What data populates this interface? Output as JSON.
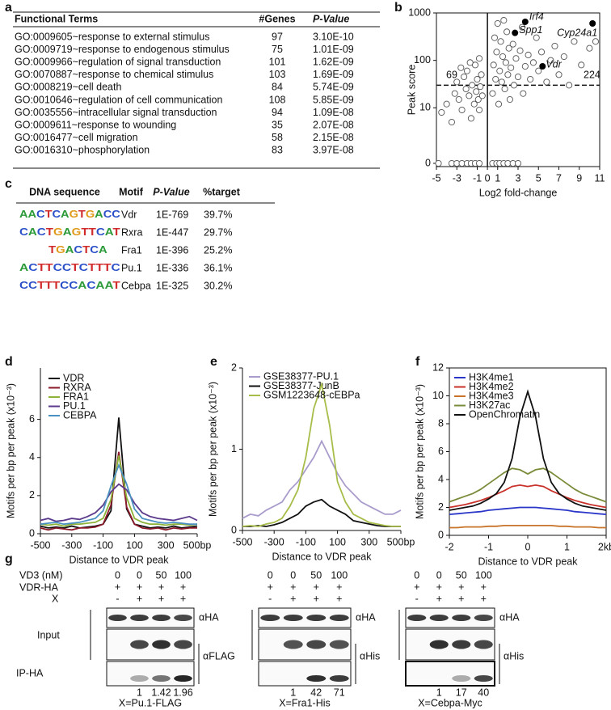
{
  "table_a": {
    "panel": "a",
    "headers": [
      "Functional Terms",
      "#Genes",
      "P-Value"
    ],
    "rows": [
      [
        "GO:0009605~response to external stimulus",
        "97",
        "3.10E-10"
      ],
      [
        "GO:0009719~response to endogenous stimulus",
        "75",
        "1.01E-09"
      ],
      [
        "GO:0009966~regulation of signal transduction",
        "101",
        "1.62E-09"
      ],
      [
        "GO:0070887~response to chemical stimulus",
        "103",
        "1.69E-09"
      ],
      [
        "GO:0008219~cell death",
        "84",
        "5.74E-09"
      ],
      [
        "GO:0010646~regulation of cell communication",
        "108",
        "5.85E-09"
      ],
      [
        "GO:0035556~intracellular signal transduction",
        "94",
        "1.09E-08"
      ],
      [
        "GO:0009611~response to wounding",
        "35",
        "2.07E-08"
      ],
      [
        "GO:0016477~cell migration",
        "58",
        "2.15E-08"
      ],
      [
        "GO:0016310~phosphorylation",
        "83",
        "3.97E-08"
      ]
    ]
  },
  "table_c": {
    "panel": "c",
    "headers": [
      "DNA sequence",
      "Motif",
      "P-Value",
      "%target"
    ],
    "rows": [
      [
        "AACTCAGTGACC",
        "Vdr",
        "1E-769",
        "39.7%"
      ],
      [
        "CACTGAGTTCAT",
        "Rxra",
        "1E-447",
        "29.7%"
      ],
      [
        "TGACTCA",
        "Fra1",
        "1E-396",
        "25.2%"
      ],
      [
        "ACTTCCTCTTTC",
        "Pu.1",
        "1E-336",
        "36.1%"
      ],
      [
        "CCTTTCCACAAT",
        "Cebpa",
        "1E-325",
        "30.2%"
      ]
    ]
  },
  "chart_data": [
    {
      "type": "scatter",
      "panel": "b",
      "xlabel": "Log2 fold-change",
      "ylabel": "Peak score",
      "xlim": [
        -5,
        11
      ],
      "xticks": [
        -5,
        -3,
        -1,
        0,
        1,
        3,
        5,
        7,
        9,
        11
      ],
      "ylim": [
        0,
        1000
      ],
      "yticks": [
        0,
        10,
        100,
        1000
      ],
      "yscale": "log",
      "vline": 0,
      "threshold": 30,
      "annotations": [
        69,
        224
      ],
      "x": [
        -4.5,
        -4,
        -3.5,
        -3.2,
        -3,
        -2.8,
        -2.5,
        -2.3,
        -2.1,
        -2,
        -1.8,
        -1.6,
        -1.5,
        -1.3,
        -1.2,
        -1.1,
        -1,
        -0.9,
        -0.8,
        -0.7,
        -0.6,
        -0.5,
        -1.7,
        -2.6,
        -0.8,
        0.5,
        0.6,
        0.7,
        0.8,
        0.9,
        1,
        1.1,
        1.2,
        1.3,
        1.4,
        1.5,
        1.6,
        1.7,
        1.8,
        1.9,
        2,
        2.1,
        2.2,
        2.3,
        2.5,
        2.6,
        2.8,
        3,
        3.2,
        3.4,
        3.5,
        3.7,
        4,
        4.2,
        4.5,
        4.8,
        5,
        5.3,
        5.8,
        6.2,
        6.6,
        7,
        7.5,
        8,
        8.5,
        9.2,
        10,
        10.6,
        -4.8,
        -3.5,
        -3,
        -2.5,
        -2,
        -1.6,
        -1.2,
        -0.8,
        0.5,
        0.9,
        1.2,
        1.6,
        2,
        2.5,
        3
      ],
      "y": [
        8,
        12,
        5,
        20,
        35,
        15,
        9,
        45,
        25,
        60,
        18,
        6,
        30,
        12,
        80,
        22,
        40,
        15,
        9,
        28,
        50,
        18,
        90,
        70,
        110,
        20,
        80,
        300,
        40,
        150,
        600,
        12,
        60,
        250,
        35,
        120,
        700,
        25,
        90,
        400,
        50,
        180,
        15,
        70,
        220,
        30,
        110,
        45,
        160,
        500,
        20,
        75,
        130,
        40,
        90,
        300,
        60,
        150,
        35,
        100,
        200,
        50,
        120,
        30,
        250,
        80,
        180,
        250,
        0,
        0,
        0,
        0,
        0,
        0,
        0,
        0,
        0,
        0,
        0,
        0,
        0,
        0,
        0
      ],
      "highlights": {
        "labels": [
          "Irf4",
          "Spp1",
          "Cyp24a1",
          "Vdr"
        ],
        "x": [
          3.7,
          2.7,
          10.3,
          5.4
        ],
        "y": [
          650,
          380,
          600,
          75
        ]
      }
    },
    {
      "type": "line",
      "panel": "d",
      "xlabel": "Distance to VDR peak",
      "ylabel": "Motifs per bp per peak (x10⁻³)",
      "xlim": [
        -500,
        500
      ],
      "xticks": [
        -500,
        -300,
        -100,
        100,
        300,
        {
          "value": 500,
          "label": "500bp"
        }
      ],
      "ylim": [
        0,
        8.7
      ],
      "yticks": [
        0,
        2,
        4,
        6
      ],
      "x": [
        -500,
        -450,
        -400,
        -350,
        -300,
        -250,
        -200,
        -150,
        -100,
        -50,
        0,
        50,
        100,
        150,
        200,
        250,
        300,
        350,
        400,
        450,
        500
      ],
      "series": [
        {
          "name": "VDR",
          "color": "#111111",
          "values": [
            0.4,
            0.3,
            0.35,
            0.3,
            0.4,
            0.3,
            0.35,
            0.4,
            0.5,
            1.2,
            6.1,
            1.3,
            0.5,
            0.4,
            0.3,
            0.35,
            0.3,
            0.4,
            0.3,
            0.35,
            0.4
          ]
        },
        {
          "name": "RXRA",
          "color": "#8b1a2a",
          "values": [
            0.3,
            0.2,
            0.3,
            0.25,
            0.2,
            0.3,
            0.3,
            0.35,
            0.5,
            1.5,
            4.3,
            1.4,
            0.5,
            0.3,
            0.25,
            0.3,
            0.2,
            0.3,
            0.25,
            0.3,
            0.3
          ]
        },
        {
          "name": "FRA1",
          "color": "#8db33a",
          "values": [
            0.5,
            0.45,
            0.5,
            0.4,
            0.5,
            0.5,
            0.55,
            0.6,
            0.8,
            1.8,
            4.1,
            1.9,
            0.8,
            0.6,
            0.5,
            0.5,
            0.45,
            0.5,
            0.5,
            0.45,
            0.5
          ]
        },
        {
          "name": "PU.1",
          "color": "#5b3a8c",
          "values": [
            0.7,
            0.8,
            0.65,
            0.7,
            0.8,
            0.75,
            0.9,
            1.1,
            1.5,
            2.2,
            2.6,
            2.3,
            1.6,
            1.1,
            0.9,
            0.8,
            0.75,
            0.7,
            0.8,
            0.9,
            0.7
          ]
        },
        {
          "name": "CEBPA",
          "color": "#4a90c0",
          "values": [
            0.5,
            0.55,
            0.6,
            0.5,
            0.55,
            0.6,
            0.7,
            0.8,
            1.2,
            2.5,
            3.6,
            2.6,
            1.3,
            0.8,
            0.7,
            0.6,
            0.55,
            0.6,
            0.55,
            0.5,
            0.5
          ]
        }
      ]
    },
    {
      "type": "line",
      "panel": "e",
      "xlabel": "Distance to VDR peak",
      "ylabel": "Motifs per bp per peak (x10⁻³)",
      "xlim": [
        -500,
        500
      ],
      "xticks": [
        -500,
        -300,
        -100,
        100,
        300,
        {
          "value": 500,
          "label": "500bp"
        }
      ],
      "ylim": [
        0,
        2
      ],
      "yticks": [
        0,
        1,
        2
      ],
      "x": [
        -500,
        -450,
        -400,
        -350,
        -300,
        -250,
        -200,
        -150,
        -100,
        -50,
        0,
        50,
        100,
        150,
        200,
        250,
        300,
        350,
        400,
        450,
        500
      ],
      "series": [
        {
          "name": "GSE38377-PU.1",
          "color": "#a99ccc",
          "values": [
            0.15,
            0.2,
            0.18,
            0.25,
            0.3,
            0.35,
            0.5,
            0.6,
            0.75,
            0.9,
            1.1,
            0.9,
            0.7,
            0.55,
            0.45,
            0.35,
            0.3,
            0.25,
            0.2,
            0.2,
            0.25
          ]
        },
        {
          "name": "GSE38377-JunB",
          "color": "#111111",
          "values": [
            0.05,
            0.05,
            0.06,
            0.05,
            0.07,
            0.1,
            0.15,
            0.2,
            0.3,
            0.35,
            0.38,
            0.3,
            0.25,
            0.2,
            0.12,
            0.1,
            0.08,
            0.06,
            0.05,
            0.05,
            0.05
          ]
        },
        {
          "name": "GSM1223648-cEBPa",
          "color": "#a7bd4a",
          "values": [
            0.05,
            0.06,
            0.05,
            0.08,
            0.1,
            0.15,
            0.3,
            0.5,
            0.9,
            1.5,
            1.8,
            1.3,
            0.6,
            0.35,
            0.2,
            0.15,
            0.1,
            0.08,
            0.06,
            0.05,
            0.05
          ]
        }
      ]
    },
    {
      "type": "line",
      "panel": "f",
      "xlabel": "Distance to VDR peak",
      "ylabel": "Motifs per bp per peak (x10⁻³)",
      "xlim": [
        -2,
        2
      ],
      "xticks": [
        -2,
        -1,
        0,
        1,
        {
          "value": 2,
          "label": "2kb"
        }
      ],
      "ylim": [
        0,
        12
      ],
      "yticks": [
        0,
        2,
        4,
        6,
        8,
        10,
        12
      ],
      "x": [
        -2,
        -1.8,
        -1.6,
        -1.4,
        -1.2,
        -1,
        -0.8,
        -0.6,
        -0.4,
        -0.2,
        0,
        0.2,
        0.4,
        0.6,
        0.8,
        1,
        1.2,
        1.4,
        1.6,
        1.8,
        2
      ],
      "series": [
        {
          "name": "H3K4me1",
          "color": "#2a36c8",
          "values": [
            1.5,
            1.55,
            1.6,
            1.65,
            1.7,
            1.8,
            1.85,
            1.9,
            1.95,
            2,
            2,
            2,
            1.95,
            1.9,
            1.85,
            1.8,
            1.7,
            1.65,
            1.6,
            1.55,
            1.5
          ]
        },
        {
          "name": "H3K4me2",
          "color": "#c8322a",
          "values": [
            2,
            2.1,
            2.2,
            2.35,
            2.5,
            2.7,
            2.95,
            3.2,
            3.5,
            3.6,
            3.5,
            3.6,
            3.5,
            3.2,
            2.95,
            2.7,
            2.5,
            2.35,
            2.2,
            2.1,
            2
          ]
        },
        {
          "name": "H3K4me3",
          "color": "#c8742a",
          "values": [
            0.55,
            0.55,
            0.6,
            0.6,
            0.6,
            0.65,
            0.65,
            0.7,
            0.7,
            0.7,
            0.7,
            0.7,
            0.7,
            0.7,
            0.65,
            0.65,
            0.6,
            0.6,
            0.6,
            0.55,
            0.55
          ]
        },
        {
          "name": "H3K27ac",
          "color": "#7a8c3a",
          "values": [
            2.4,
            2.6,
            2.8,
            3,
            3.3,
            3.7,
            4.1,
            4.5,
            4.8,
            4.7,
            4.4,
            4.7,
            4.8,
            4.5,
            4.1,
            3.7,
            3.3,
            3,
            2.8,
            2.6,
            2.4
          ]
        },
        {
          "name": "OpenChromatin",
          "color": "#111111",
          "values": [
            1.8,
            1.9,
            2,
            2.1,
            2.3,
            2.6,
            3,
            3.8,
            5.5,
            8.5,
            10.3,
            8.5,
            5.5,
            3.8,
            3,
            2.6,
            2.3,
            2.1,
            2,
            1.9,
            1.8
          ]
        }
      ]
    }
  ],
  "blots": {
    "panel": "g",
    "row_labels": {
      "vd3": "VD3 (nM)",
      "vdr": "VDR-HA",
      "x": "X",
      "input": "Input",
      "ip": "IP-HA"
    },
    "groups": [
      {
        "vd3": [
          "0",
          "0",
          "50",
          "100"
        ],
        "vdr": [
          "+",
          "+",
          "+",
          "+"
        ],
        "x": [
          "-",
          "+",
          "+",
          "+"
        ],
        "antibodies": [
          "αHA",
          "αFLAG"
        ],
        "quant": [
          "1",
          "1.42",
          "1.96"
        ],
        "caption": "X=Pu.1-FLAG"
      },
      {
        "vd3": [
          "0",
          "0",
          "50",
          "100"
        ],
        "vdr": [
          "+",
          "+",
          "+",
          "+"
        ],
        "x": [
          "-",
          "+",
          "+",
          "+"
        ],
        "antibodies": [
          "αHA",
          "αHis"
        ],
        "quant": [
          "1",
          "42",
          "71"
        ],
        "caption": "X=Fra1-His"
      },
      {
        "vd3": [
          "0",
          "0",
          "50",
          "100"
        ],
        "vdr": [
          "+",
          "+",
          "+",
          "+"
        ],
        "x": [
          "-",
          "+",
          "+",
          "+"
        ],
        "antibodies": [
          "αHA",
          "αHis"
        ],
        "quant": [
          "1",
          "17",
          "40"
        ],
        "caption": "X=Cebpa-Myc"
      }
    ]
  }
}
